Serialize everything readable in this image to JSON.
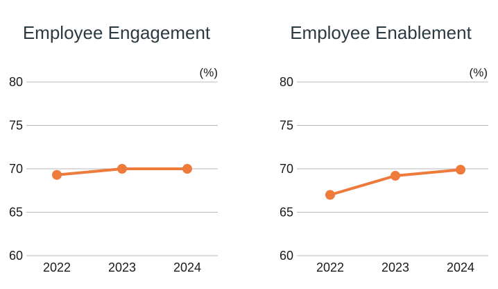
{
  "colors": {
    "line": "#ee7a3b",
    "grid": "#b8b8b8",
    "title": "#2c3a42",
    "text": "#1a1a1a"
  },
  "chart_data": [
    {
      "type": "line",
      "title": "Employee Engagement",
      "unit": "(%)",
      "categories": [
        "2022",
        "2023",
        "2024"
      ],
      "values": [
        69.3,
        70.0,
        70.0
      ],
      "yticks": [
        "60",
        "65",
        "70",
        "75",
        "80"
      ],
      "ylim": [
        60,
        80
      ],
      "xlabel": "",
      "ylabel": "",
      "grid": true
    },
    {
      "type": "line",
      "title": "Employee Enablement",
      "unit": "(%)",
      "categories": [
        "2022",
        "2023",
        "2024"
      ],
      "values": [
        67.0,
        69.2,
        69.9
      ],
      "yticks": [
        "60",
        "65",
        "70",
        "75",
        "80"
      ],
      "ylim": [
        60,
        80
      ],
      "xlabel": "",
      "ylabel": "",
      "grid": true
    }
  ]
}
